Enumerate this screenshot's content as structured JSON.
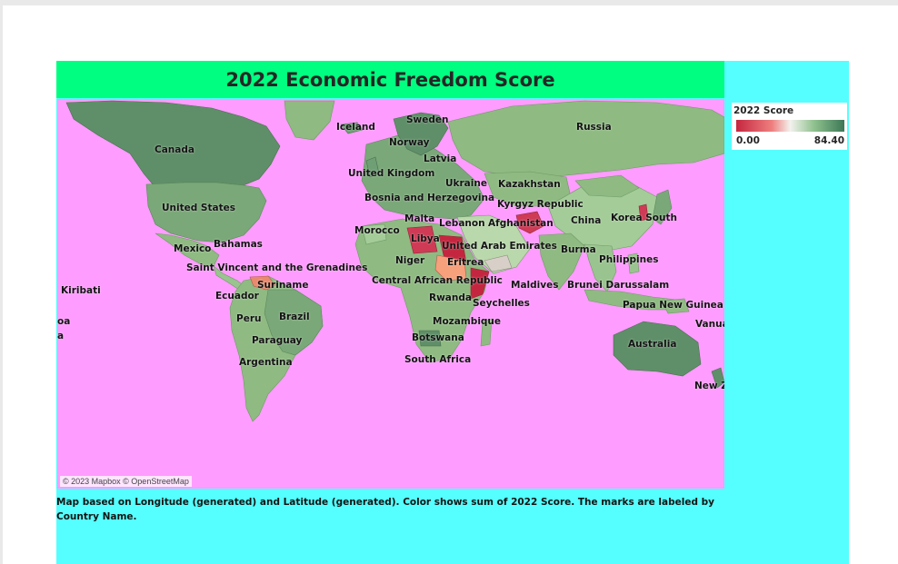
{
  "title": "2022 Economic Freedom Score",
  "legend": {
    "title": "2022 Score",
    "min": "0.00",
    "max": "84.40",
    "low_color": "#c5263f",
    "mid_color": "#f3f2ee",
    "high_color": "#3c7756"
  },
  "attribution": "© 2023 Mapbox © OpenStreetMap",
  "caption": "Map based on Longitude (generated) and Latitude (generated).  Color shows sum of 2022 Score.  The marks are labeled by Country Name.",
  "colors": {
    "dashboard_bg": "#55ffff",
    "title_bg": "#00ff80",
    "map_ocean": "#ff9cff",
    "land_default": "#8fba82"
  },
  "country_labels": [
    "Canada",
    "Iceland",
    "Sweden",
    "Norway",
    "Russia",
    "Latvia",
    "United Kingdom",
    "Ukraine",
    "Kazakhstan",
    "Bosnia and Herzegovina",
    "Kyrgyz Republic",
    "United States",
    "Malta",
    "Lebanon",
    "Afghanistan",
    "China",
    "Korea South",
    "Morocco",
    "Libya",
    "United Arab Emirates",
    "Mexico",
    "Bahamas",
    "Burma",
    "Niger",
    "Eritrea",
    "Philippines",
    "Saint Vincent and the Grenadines",
    "Central African Republic",
    "Suriname",
    "Maldives",
    "Brunei Darussalam",
    "Kiribati",
    "Ecuador",
    "Rwanda",
    "Seychelles",
    "Papua New Guinea",
    "Peru",
    "Brazil",
    "Mozambique",
    "oa",
    "Vanua",
    "a",
    "Botswana",
    "Paraguay",
    "Australia",
    "Argentina",
    "South Africa",
    "New Z"
  ]
}
